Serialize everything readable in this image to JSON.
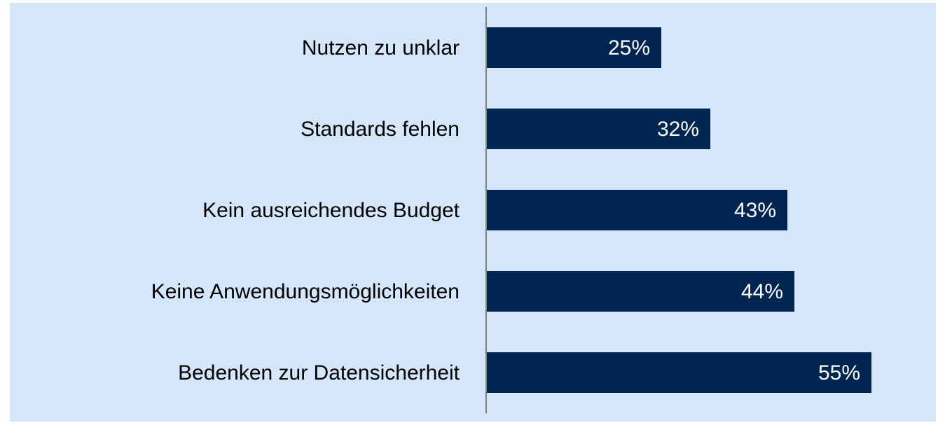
{
  "chart_data": {
    "type": "barh",
    "categories": [
      "Nutzen zu unklar",
      "Standards fehlen",
      "Kein ausreichendes Budget",
      "Keine Anwendungsmöglichkeiten",
      "Bedenken zur Datensicherheit"
    ],
    "values": [
      25,
      32,
      43,
      44,
      55
    ],
    "value_labels": [
      "25%",
      "32%",
      "43%",
      "44%",
      "55%"
    ],
    "color": "#002550",
    "xlim": [
      0,
      60
    ]
  }
}
